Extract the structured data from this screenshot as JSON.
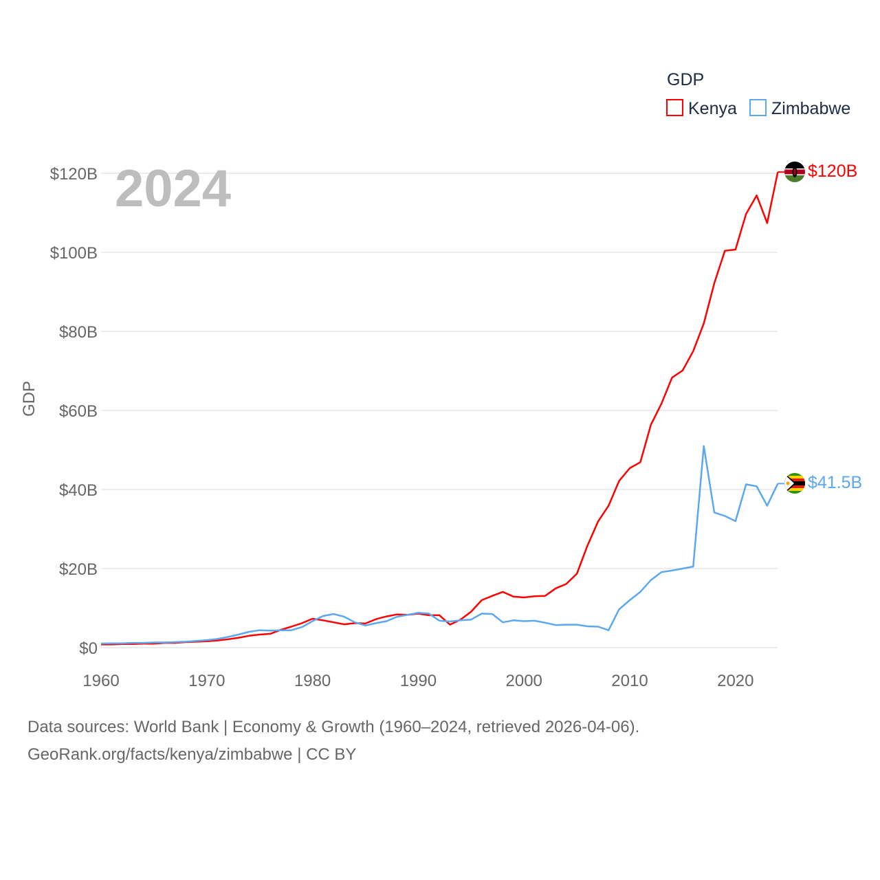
{
  "chart_data": {
    "type": "line",
    "title": "GDP",
    "ylabel": "GDP",
    "xlabel": "",
    "current_year_label": "2024",
    "xlim": [
      1960,
      2024
    ],
    "ylim": [
      0,
      120
    ],
    "x_ticks": [
      "1960",
      "1970",
      "1980",
      "1990",
      "2000",
      "2010",
      "2020"
    ],
    "y_ticks": [
      {
        "value": 0,
        "label": "$0"
      },
      {
        "value": 20,
        "label": "$20B"
      },
      {
        "value": 40,
        "label": "$40B"
      },
      {
        "value": 60,
        "label": "$60B"
      },
      {
        "value": 80,
        "label": "$80B"
      },
      {
        "value": 100,
        "label": "$100B"
      },
      {
        "value": 120,
        "label": "$120B"
      }
    ],
    "grid": true,
    "legend_placement": "top-right",
    "x_start": 1960,
    "series": [
      {
        "name": "Kenya",
        "color": "#ff0000",
        "end_label": "$120B",
        "flag": "kenya-flag",
        "values": [
          0.8,
          0.8,
          0.9,
          0.9,
          1.0,
          1.0,
          1.2,
          1.2,
          1.4,
          1.5,
          1.6,
          1.8,
          2.1,
          2.5,
          3.0,
          3.3,
          3.5,
          4.5,
          5.3,
          6.2,
          7.3,
          6.9,
          6.4,
          5.9,
          6.2,
          6.1,
          7.2,
          7.9,
          8.4,
          8.3,
          8.6,
          8.2,
          8.2,
          5.8,
          7.1,
          9.1,
          12.0,
          13.1,
          14.1,
          12.9,
          12.7,
          13.0,
          13.1,
          15.0,
          16.1,
          18.7,
          25.8,
          31.9,
          35.9,
          42.2,
          45.4,
          46.9,
          56.4,
          61.7,
          68.3,
          70.1,
          75.0,
          82.0,
          92.2,
          100.4,
          100.7,
          109.7,
          114.4,
          107.4,
          120.3
        ]
      },
      {
        "name": "Zimbabwe",
        "color": "#5ba8f0",
        "end_label": "$41.5B",
        "flag": "zimbabwe-flag",
        "values": [
          1.05,
          1.1,
          1.1,
          1.2,
          1.2,
          1.3,
          1.3,
          1.4,
          1.5,
          1.7,
          1.9,
          2.2,
          2.7,
          3.3,
          4.0,
          4.4,
          4.3,
          4.4,
          4.4,
          5.2,
          6.7,
          8.0,
          8.5,
          7.8,
          6.4,
          5.6,
          6.2,
          6.7,
          7.8,
          8.3,
          8.8,
          8.6,
          6.8,
          6.6,
          6.9,
          7.1,
          8.6,
          8.5,
          6.4,
          6.9,
          6.7,
          6.8,
          6.3,
          5.7,
          5.8,
          5.8,
          5.4,
          5.3,
          4.4,
          9.7,
          12.0,
          14.1,
          17.1,
          19.1,
          19.5,
          20.0,
          20.5,
          51.0,
          34.2,
          33.3,
          32.0,
          41.3,
          40.8,
          35.9,
          41.5
        ]
      }
    ]
  },
  "footer": {
    "line1": "Data sources: World Bank | Economy & Growth (1960–2024, retrieved 2026-04-06).",
    "line2": "GeoRank.org/facts/kenya/zimbabwe | CC BY"
  }
}
